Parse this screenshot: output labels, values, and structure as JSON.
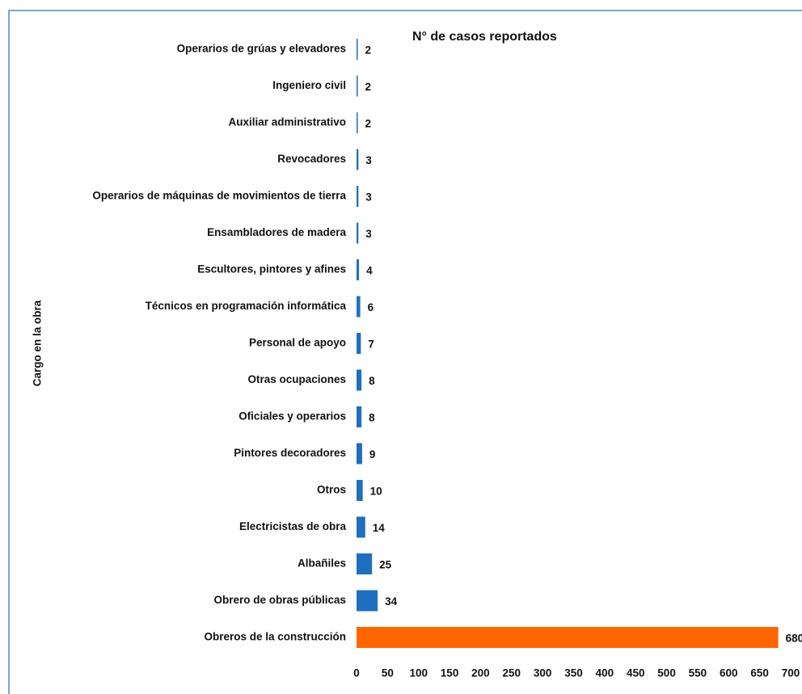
{
  "chart_data": {
    "type": "bar",
    "orientation": "horizontal",
    "title": "N° de casos reportados",
    "y_label": "Cargo en la obra",
    "categories": [
      "Operarios de grúas y elevadores",
      "Ingeniero civil",
      "Auxiliar administrativo",
      "Revocadores",
      "Operarios de máquinas de movimientos de tierra",
      "Ensambladores de madera",
      "Escultores, pintores y afines",
      "Técnicos en programación informática",
      "Personal de apoyo",
      "Otras ocupaciones",
      "Oficiales y operarios",
      "Pintores decoradores",
      "Otros",
      "Electricistas de obra",
      "Albañiles",
      "Obrero de obras públicas",
      "Obreros de la construcción"
    ],
    "values": [
      2,
      2,
      2,
      3,
      3,
      3,
      4,
      6,
      7,
      8,
      8,
      9,
      10,
      14,
      25,
      34,
      680
    ],
    "colors": [
      "#1f6fc0",
      "#1f6fc0",
      "#1f6fc0",
      "#1f6fc0",
      "#1f6fc0",
      "#1f6fc0",
      "#1f6fc0",
      "#1f6fc0",
      "#1f6fc0",
      "#1f6fc0",
      "#1f6fc0",
      "#1f6fc0",
      "#1f6fc0",
      "#1f6fc0",
      "#1f6fc0",
      "#1f6fc0",
      "#ff6600"
    ],
    "xlim": [
      0,
      700
    ],
    "xticks": [
      0,
      50,
      100,
      150,
      200,
      250,
      300,
      350,
      400,
      450,
      500,
      550,
      600,
      650,
      700
    ],
    "grid": false
  }
}
